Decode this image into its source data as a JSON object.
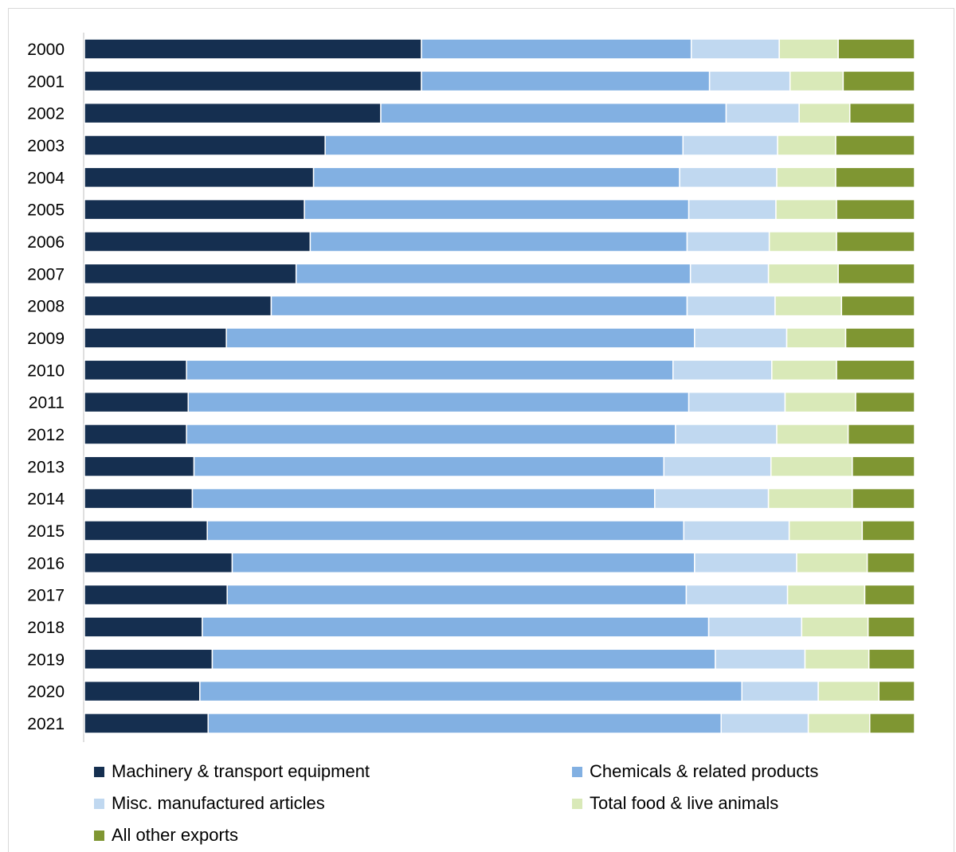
{
  "chart_data": {
    "type": "bar",
    "orientation": "horizontal",
    "stacked": "percent",
    "title": "",
    "xlabel": "",
    "ylabel": "",
    "grid": false,
    "legend_position": "bottom",
    "categories": [
      "2000",
      "2001",
      "2002",
      "2003",
      "2004",
      "2005",
      "2006",
      "2007",
      "2008",
      "2009",
      "2010",
      "2011",
      "2012",
      "2013",
      "2014",
      "2015",
      "2016",
      "2017",
      "2018",
      "2019",
      "2020",
      "2021"
    ],
    "series": [
      {
        "name": "Machinery & transport equipment",
        "color": "#152f50",
        "values": [
          40.6,
          40.6,
          35.7,
          29.0,
          27.6,
          26.5,
          27.2,
          25.5,
          22.5,
          17.1,
          12.3,
          12.5,
          12.3,
          13.2,
          13.0,
          14.8,
          17.8,
          17.2,
          14.2,
          15.4,
          13.9,
          14.9
        ]
      },
      {
        "name": "Chemicals & related products",
        "color": "#82b0e2",
        "values": [
          32.5,
          34.7,
          41.6,
          43.1,
          44.1,
          46.3,
          45.4,
          47.5,
          50.1,
          56.4,
          58.6,
          60.3,
          58.9,
          56.6,
          55.7,
          57.4,
          55.7,
          55.3,
          61.0,
          60.6,
          65.3,
          61.8
        ]
      },
      {
        "name": "Misc. manufactured articles",
        "color": "#c0d8f0",
        "values": [
          10.6,
          9.7,
          8.8,
          11.4,
          11.7,
          10.5,
          9.9,
          9.4,
          10.6,
          11.1,
          11.9,
          11.6,
          12.2,
          12.9,
          13.7,
          12.7,
          12.3,
          12.2,
          11.2,
          10.8,
          9.2,
          10.5
        ]
      },
      {
        "name": "Total food & live animals",
        "color": "#d9e9b8",
        "values": [
          7.1,
          6.4,
          6.1,
          7.0,
          7.1,
          7.3,
          8.1,
          8.4,
          8.0,
          7.1,
          7.8,
          8.5,
          8.6,
          9.8,
          10.1,
          8.8,
          8.5,
          9.3,
          8.0,
          7.7,
          7.3,
          7.4
        ]
      },
      {
        "name": "All other  exports",
        "color": "#7f9632",
        "values": [
          9.2,
          8.6,
          7.8,
          9.5,
          9.5,
          9.4,
          9.4,
          9.2,
          8.8,
          8.3,
          9.4,
          7.1,
          8.0,
          7.5,
          7.5,
          6.3,
          5.7,
          6.0,
          5.6,
          5.5,
          4.3,
          5.4
        ]
      }
    ]
  }
}
